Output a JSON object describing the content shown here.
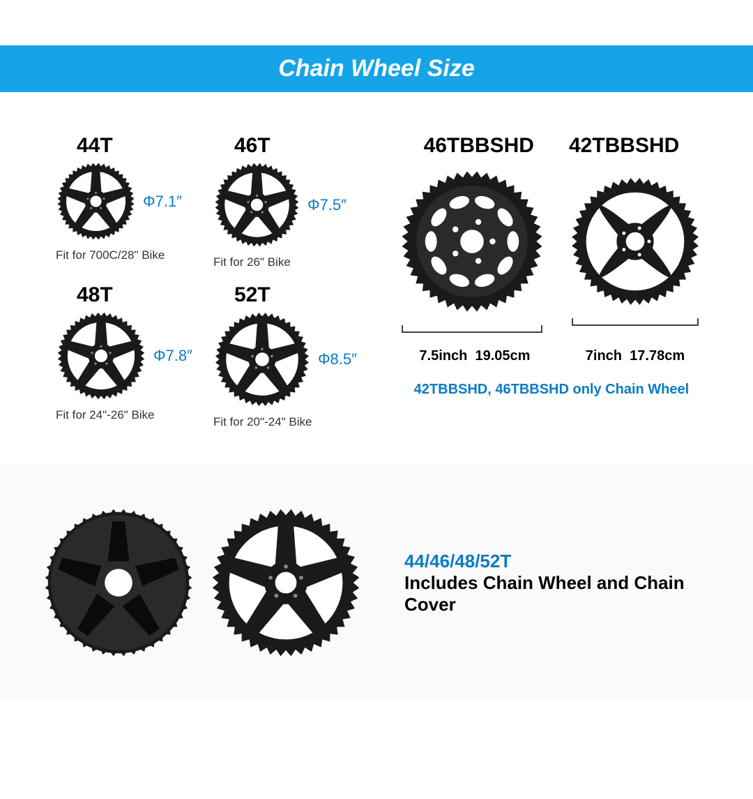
{
  "header": {
    "title": "Chain Wheel Size"
  },
  "wheels": [
    {
      "label": "44T",
      "diameter": "Φ7.1″",
      "fit": "Fit for 700C/28\" Bike",
      "size": 115
    },
    {
      "label": "46T",
      "diameter": "Φ7.5″",
      "fit": "Fit for 26\" Bike",
      "size": 125
    },
    {
      "label": "48T",
      "diameter": "Φ7.8″",
      "fit": "Fit for 24\"-26\" Bike",
      "size": 130
    },
    {
      "label": "52T",
      "diameter": "Φ8.5″",
      "fit": "Fit for 20\"-24\" Bike",
      "size": 140
    }
  ],
  "right": {
    "labels": [
      "46TBBSHD",
      "42TBBSHD"
    ],
    "dims": [
      {
        "inch": "7.5inch",
        "cm": "19.05cm"
      },
      {
        "inch": "7inch",
        "cm": "17.78cm"
      }
    ],
    "note": "42TBBSHD, 46TBBSHD only Chain Wheel"
  },
  "bottom": {
    "title": "44/46/48/52T",
    "sub": "Includes Chain Wheel and Chain Cover"
  },
  "colors": {
    "accent": "#16a4e8",
    "link": "#0a7cc4",
    "sprocket": "#1a1a1a"
  }
}
